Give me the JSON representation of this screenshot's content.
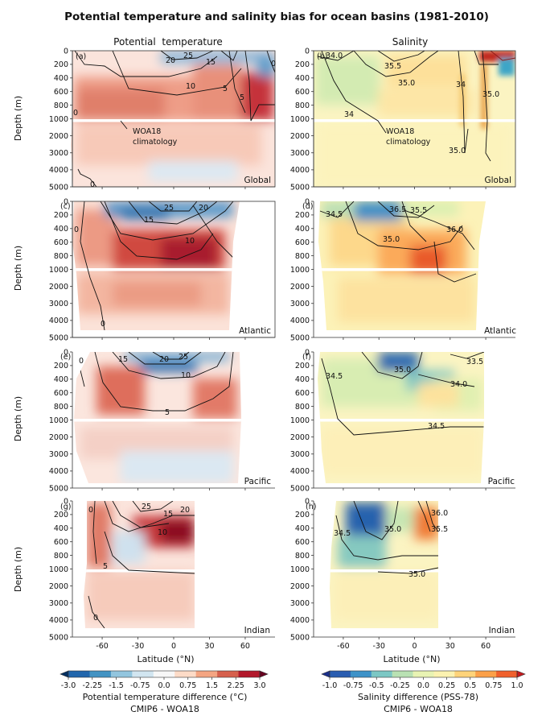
{
  "title": "Potential temperature and salinity bias for ocean basins (1981-2010)",
  "columns": [
    "Potential  temperature",
    "Salinity"
  ],
  "ylabel": "Depth (m)",
  "xlabel": "Latitude (°N)",
  "depth_ticks": [
    "0",
    "200",
    "400",
    "600",
    "800",
    "1000",
    "2000",
    "3000",
    "4000",
    "5000"
  ],
  "lat_ticks": [
    "-60",
    "-30",
    "0",
    "30",
    "60"
  ],
  "climatology_label": [
    "WOA18",
    "climatology"
  ],
  "panels": [
    {
      "id": "(a)",
      "basin": "Global",
      "var": "temperature",
      "contours": [
        "0",
        "20",
        "25",
        "15",
        "10",
        "5",
        "5",
        "0",
        "0"
      ]
    },
    {
      "id": "(b)",
      "basin": "Global",
      "var": "salinity",
      "contours": [
        "34.0",
        "35.5",
        "35.0",
        "34",
        "34",
        "35.0",
        "35.0"
      ]
    },
    {
      "id": "(c)",
      "basin": "Atlantic",
      "var": "temperature",
      "contours": [
        "0",
        "25",
        "20",
        "15",
        "10",
        "0"
      ]
    },
    {
      "id": "(d)",
      "basin": "Atlantic",
      "var": "salinity",
      "contours": [
        "34.5",
        "36.5",
        "35.5",
        "36.0",
        "35.0"
      ]
    },
    {
      "id": "(e)",
      "basin": "Pacific",
      "var": "temperature",
      "contours": [
        "0",
        "15",
        "20",
        "25",
        "10",
        "5"
      ]
    },
    {
      "id": "(f)",
      "basin": "Pacific",
      "var": "salinity",
      "contours": [
        "34.5",
        "35.0",
        "33.5",
        "34.0",
        "34.5"
      ]
    },
    {
      "id": "(g)",
      "basin": "Indian",
      "var": "temperature",
      "contours": [
        "0",
        "25",
        "15",
        "20",
        "10",
        "5",
        "0"
      ]
    },
    {
      "id": "(h)",
      "basin": "Indian",
      "var": "salinity",
      "contours": [
        "34.5",
        "35.0",
        "36.0",
        "35.5",
        "35.0"
      ]
    }
  ],
  "colorbars": [
    {
      "ticks": [
        "-3.0",
        "-2.25",
        "-1.5",
        "-0.75",
        "0.0",
        "0.75",
        "1.5",
        "2.25",
        "3.0"
      ],
      "label": "Potential temperature difference (°C)",
      "sublabel": "CMIP6 - WOA18"
    },
    {
      "ticks": [
        "-1.0",
        "-0.75",
        "-0.5",
        "-0.25",
        "0.0",
        "0.25",
        "0.5",
        "0.75",
        "1.0"
      ],
      "label": "Salinity difference (PSS-78)",
      "sublabel": "CMIP6 - WOA18"
    }
  ],
  "colors": {
    "temp_scale": [
      "#053061",
      "#2166ac",
      "#4393c3",
      "#92c5de",
      "#d1e5f0",
      "#f7f7f7",
      "#fddbc7",
      "#f4a582",
      "#d6604d",
      "#b2182b",
      "#67001f"
    ],
    "sal_scale": [
      "#1a2f8a",
      "#2a5db0",
      "#3e92c8",
      "#7cc7c4",
      "#b9e1b3",
      "#e8f3b3",
      "#fbf2b0",
      "#fed37a",
      "#fba049",
      "#f0602c",
      "#c61a1e"
    ],
    "divider": "#ffffff",
    "contour": "#111111"
  },
  "chart_data": [
    {
      "type": "heatmap",
      "panel": "(a)",
      "basin": "Global",
      "variable": "Potential temperature difference (°C)",
      "xlim": [
        -85,
        85
      ],
      "ylim": [
        5000,
        0
      ],
      "contour_levels": [
        0,
        5,
        10,
        15,
        20,
        25
      ],
      "colorbar_range": [
        -3.0,
        3.0
      ]
    },
    {
      "type": "heatmap",
      "panel": "(b)",
      "basin": "Global",
      "variable": "Salinity difference (PSS-78)",
      "xlim": [
        -85,
        85
      ],
      "ylim": [
        5000,
        0
      ],
      "contour_levels": [
        34.0,
        35.0,
        35.5
      ],
      "colorbar_range": [
        -1.0,
        1.0
      ]
    },
    {
      "type": "heatmap",
      "panel": "(c)",
      "basin": "Atlantic",
      "variable": "Potential temperature difference (°C)",
      "xlim": [
        -85,
        85
      ],
      "ylim": [
        5000,
        0
      ],
      "contour_levels": [
        0,
        10,
        15,
        20,
        25
      ],
      "colorbar_range": [
        -3.0,
        3.0
      ]
    },
    {
      "type": "heatmap",
      "panel": "(d)",
      "basin": "Atlantic",
      "variable": "Salinity difference (PSS-78)",
      "xlim": [
        -85,
        85
      ],
      "ylim": [
        5000,
        0
      ],
      "contour_levels": [
        34.5,
        35.0,
        35.5,
        36.0,
        36.5
      ],
      "colorbar_range": [
        -1.0,
        1.0
      ]
    },
    {
      "type": "heatmap",
      "panel": "(e)",
      "basin": "Pacific",
      "variable": "Potential temperature difference (°C)",
      "xlim": [
        -85,
        85
      ],
      "ylim": [
        5000,
        0
      ],
      "contour_levels": [
        0,
        5,
        10,
        15,
        20,
        25
      ],
      "colorbar_range": [
        -3.0,
        3.0
      ]
    },
    {
      "type": "heatmap",
      "panel": "(f)",
      "basin": "Pacific",
      "variable": "Salinity difference (PSS-78)",
      "xlim": [
        -85,
        85
      ],
      "ylim": [
        5000,
        0
      ],
      "contour_levels": [
        33.5,
        34.0,
        34.5,
        35.0
      ],
      "colorbar_range": [
        -1.0,
        1.0
      ]
    },
    {
      "type": "heatmap",
      "panel": "(g)",
      "basin": "Indian",
      "variable": "Potential temperature difference (°C)",
      "xlim": [
        -85,
        85
      ],
      "ylim": [
        5000,
        0
      ],
      "contour_levels": [
        0,
        5,
        10,
        15,
        20,
        25
      ],
      "colorbar_range": [
        -3.0,
        3.0
      ]
    },
    {
      "type": "heatmap",
      "panel": "(h)",
      "basin": "Indian",
      "variable": "Salinity difference (PSS-78)",
      "xlim": [
        -85,
        85
      ],
      "ylim": [
        5000,
        0
      ],
      "contour_levels": [
        34.5,
        35.0,
        35.5,
        36.0
      ],
      "colorbar_range": [
        -1.0,
        1.0
      ]
    }
  ]
}
